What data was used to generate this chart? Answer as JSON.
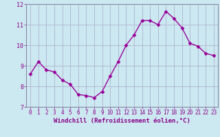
{
  "x": [
    0,
    1,
    2,
    3,
    4,
    5,
    6,
    7,
    8,
    9,
    10,
    11,
    12,
    13,
    14,
    15,
    16,
    17,
    18,
    19,
    20,
    21,
    22,
    23
  ],
  "y": [
    8.6,
    9.2,
    8.8,
    8.7,
    8.3,
    8.1,
    7.6,
    7.55,
    7.45,
    7.75,
    8.5,
    9.2,
    10.0,
    10.5,
    11.2,
    11.2,
    11.0,
    11.65,
    11.3,
    10.85,
    10.1,
    9.95,
    9.6,
    9.5
  ],
  "line_color": "#990099",
  "marker": "D",
  "marker_size": 2.5,
  "bg_color": "#cce8f0",
  "grid_color": "#aaaacc",
  "xlabel": "Windchill (Refroidissement éolien,°C)",
  "ylim": [
    7.0,
    12.0
  ],
  "xlim": [
    -0.5,
    23.5
  ],
  "yticks": [
    7,
    8,
    9,
    10,
    11,
    12
  ],
  "xticks": [
    0,
    1,
    2,
    3,
    4,
    5,
    6,
    7,
    8,
    9,
    10,
    11,
    12,
    13,
    14,
    15,
    16,
    17,
    18,
    19,
    20,
    21,
    22,
    23
  ],
  "tick_color": "#880088",
  "tick_fontsize": 5.5,
  "xlabel_fontsize": 6.5,
  "axis_color": "#8888aa",
  "lw": 1.0
}
